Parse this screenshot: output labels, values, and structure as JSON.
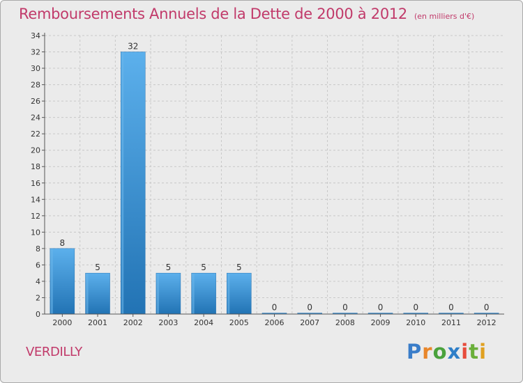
{
  "title": "Remboursements Annuels de la Dette de 2000 à 2012",
  "unit": "(en milliers d'€)",
  "commune": "VERDILLY",
  "logo": {
    "letters": [
      "P",
      "r",
      "o",
      "x",
      "i",
      "t",
      "i"
    ],
    "colors": [
      "#3a7dc9",
      "#e8862a",
      "#4aa23c",
      "#2f7fc8",
      "#e74c3c",
      "#6aaf3a",
      "#e0a020"
    ]
  },
  "colors": {
    "bar": "#3f9ad9",
    "bar_dark": "#2472b3",
    "bar_light": "#6ab6ea",
    "grid": "#c8c8c8",
    "accent": "#c13a6a"
  },
  "chart_data": {
    "type": "bar",
    "categories": [
      "2000",
      "2001",
      "2002",
      "2003",
      "2004",
      "2005",
      "2006",
      "2007",
      "2008",
      "2009",
      "2010",
      "2011",
      "2012"
    ],
    "values": [
      8,
      5,
      32,
      5,
      5,
      5,
      0,
      0,
      0,
      0,
      0,
      0,
      0
    ],
    "data_labels": [
      "8",
      "5",
      "32",
      "5",
      "5",
      "5",
      "0",
      "0",
      "0",
      "0",
      "0",
      "0",
      "0"
    ],
    "title": "Remboursements Annuels de la Dette de 2000 à 2012",
    "xlabel": "",
    "ylabel": "",
    "ylim": [
      0,
      34
    ],
    "yticks": [
      0,
      2,
      4,
      6,
      8,
      10,
      12,
      14,
      16,
      18,
      20,
      22,
      24,
      26,
      28,
      30,
      32,
      34
    ],
    "grid": true
  }
}
